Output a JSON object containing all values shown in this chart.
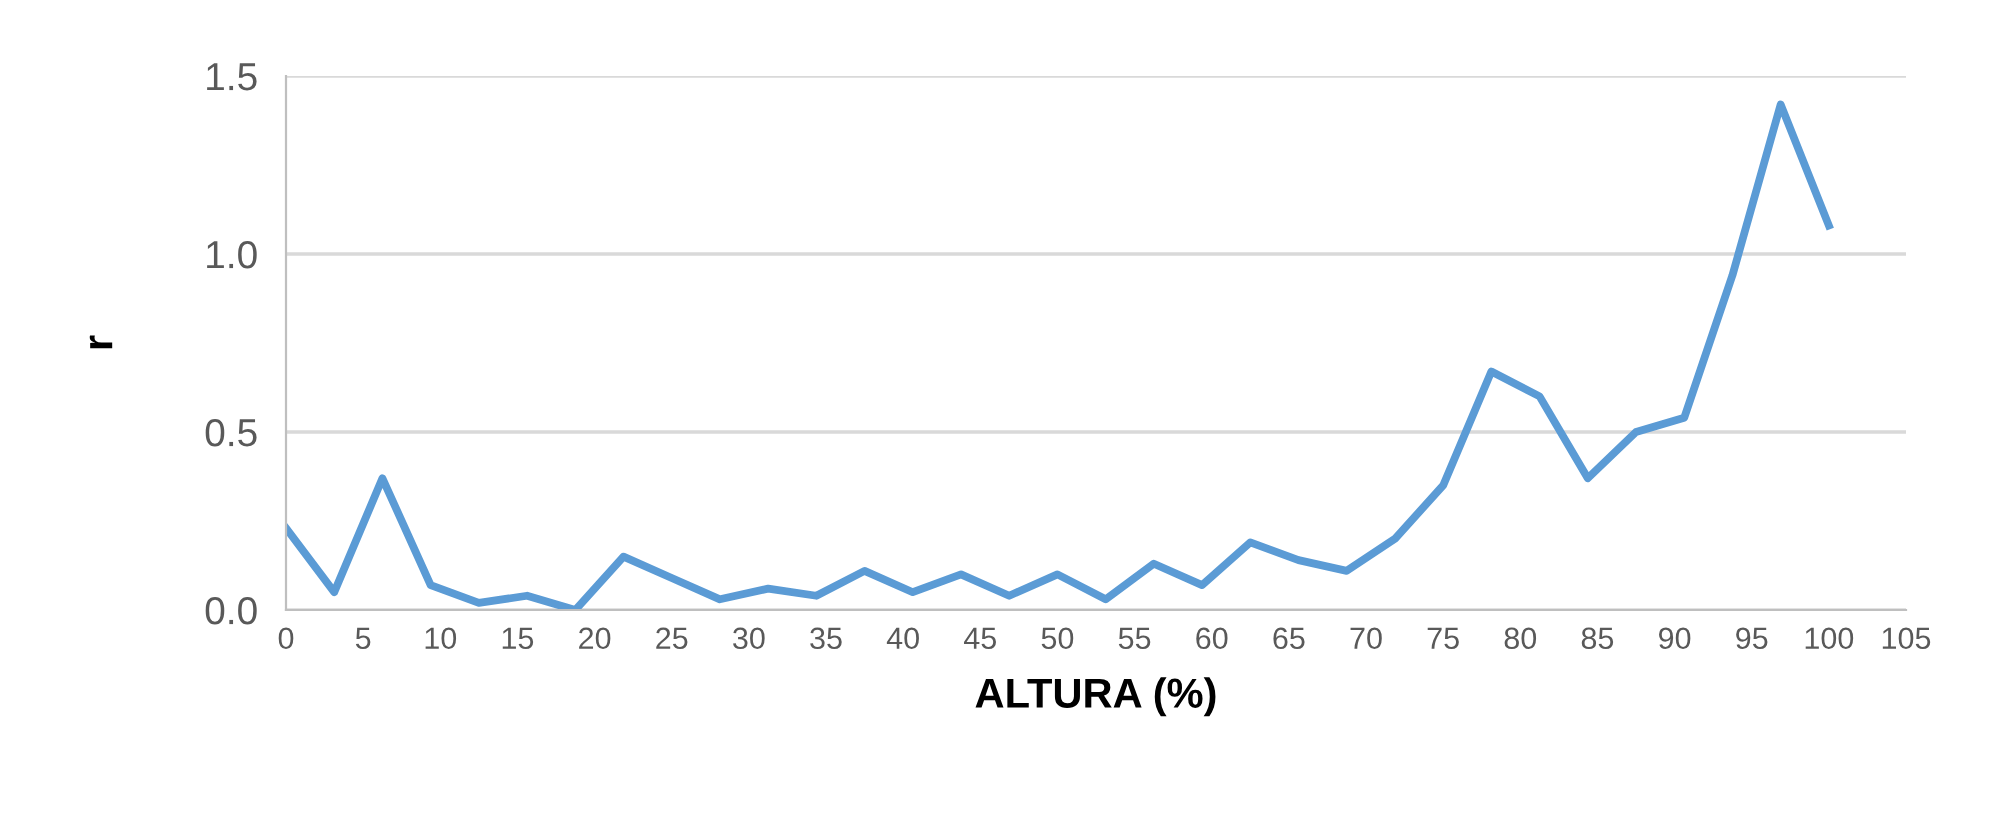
{
  "chart_data": {
    "type": "line",
    "xlabel": "ALTURA (%)",
    "ylabel": "r",
    "x": [
      0,
      3.125,
      6.25,
      9.375,
      12.5,
      15.625,
      18.75,
      21.875,
      25,
      28.125,
      31.25,
      34.375,
      37.5,
      40.625,
      43.75,
      46.875,
      50,
      53.125,
      56.25,
      59.375,
      62.5,
      65.625,
      68.75,
      71.875,
      75,
      78.125,
      81.25,
      84.375,
      87.5,
      90.625,
      93.75,
      96.875,
      100
    ],
    "series": [
      {
        "color": "#5b9bd5",
        "values": [
          0.23,
          0.05,
          0.37,
          0.07,
          0.02,
          0.04,
          0.0,
          0.15,
          0.09,
          0.03,
          0.06,
          0.04,
          0.11,
          0.05,
          0.1,
          0.04,
          0.1,
          0.03,
          0.13,
          0.07,
          0.19,
          0.14,
          0.11,
          0.2,
          0.35,
          0.67,
          0.6,
          0.37,
          0.5,
          0.54,
          0.94,
          1.42,
          1.08
        ]
      }
    ],
    "xlim": [
      0,
      105
    ],
    "xticks": [
      0,
      5,
      10,
      15,
      20,
      25,
      30,
      35,
      40,
      45,
      50,
      55,
      60,
      65,
      70,
      75,
      80,
      85,
      90,
      95,
      100,
      105
    ],
    "ylim": [
      0,
      1.5
    ],
    "yticks": [
      {
        "value": 0,
        "label": "0.0"
      },
      {
        "value": 0.5,
        "label": "0.5"
      },
      {
        "value": 1,
        "label": "1.0"
      },
      {
        "value": 1.5,
        "label": "1.5"
      }
    ],
    "grid": "y",
    "legend": false,
    "marker": "none",
    "line_style": "solid"
  }
}
